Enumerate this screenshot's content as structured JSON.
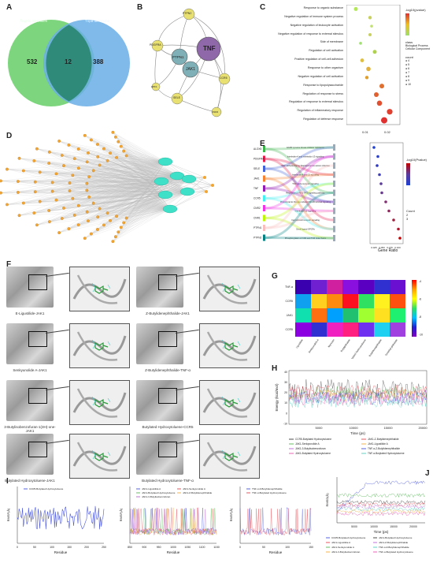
{
  "panels": {
    "A": "A",
    "B": "B",
    "C": "C",
    "D": "D",
    "E": "E",
    "F": "F",
    "G": "G",
    "H": "H",
    "I": "I",
    "J": "J"
  },
  "venn": {
    "left_label": "Ångelic Sennates",
    "right_label": "Tnpa aercesme",
    "left_only": "532",
    "overlap": "12",
    "right_only": "388",
    "left_color": "#6fd16f",
    "right_color": "#6aaee8"
  },
  "network_b": {
    "center": "TNF",
    "nodes": [
      "PTPN2",
      "PDGFRA",
      "PTPN1",
      "JAK1",
      "CCR5",
      "SELE",
      "HPF1",
      "CNR2",
      "ALOX5"
    ]
  },
  "panel_c": {
    "terms": [
      "Response to organic substance",
      "Negative regulation of immune system process",
      "Negative regulation of leukocyte activation",
      "Negative regulation of response to external stimulus",
      "Side of membrane",
      "Regulation of cell activation",
      "Positive regulation of cell-cell adhesion",
      "Response to other organism",
      "Negative regulation of cell activation",
      "Response to lipopolysaccharide",
      "Regulation of response to stress",
      "Regulation of response to external stimulus",
      "Regulation of inflammatory response",
      "Regulation of defense response"
    ],
    "xticks": [
      "0.01",
      "0.02"
    ],
    "legend_title": "-log10(pvalue)",
    "legend_ticks": [
      "8",
      "6",
      "4"
    ],
    "class_title": "class",
    "class_items": [
      "Biological Process",
      "Cellular Component"
    ],
    "count_title": "count",
    "count_items": [
      "4",
      "5",
      "6",
      "7",
      "8",
      "9",
      "10"
    ]
  },
  "panel_e": {
    "genes": [
      "ALOX5",
      "PDGFRA",
      "SELE",
      "JAK1",
      "TNF",
      "CCR5",
      "CNR2",
      "CNR1",
      "PTPN1",
      "PTPN2"
    ],
    "pathways": [
      "EGFR tyrosine kinase inhibitor resistance",
      "Interleukin-4 and interleukin-13 signaling",
      "TCR pathway during Staphylococcus aureus infection",
      "Interleukin-4 and 13 signaling",
      "TCR alpha receptor signaling",
      "Regulation of the STAT3 signaling pathway",
      "Photodynamic therapy-induced NF-kB survival signaling",
      "Interleukin-10 signaling",
      "Cannabinoid receptor signaling",
      "Small ligand GPCRs",
      "Phosphorylation of CD3 and TCR zeta chains"
    ],
    "xlabel": "Gene Ratio",
    "xticks": [
      "0.025",
      "0.050",
      "0.075",
      "0.100"
    ],
    "legend_title": "-log10(Pvalue)",
    "legend_ticks": [
      "2.0",
      "1.5"
    ],
    "count_title": "Count",
    "count_items": [
      "2",
      "3"
    ]
  },
  "panel_f": {
    "captions": [
      "E-Ligustilide-JAK1",
      "Z-Butylidenephthalide-JAK1",
      "Senkyunolide A-JAK1",
      "Z-Butylidenephthalide-TNF-α",
      "3-Butylisobenzofuran-1(3H)-one-JAK1",
      "Butylated Hydroxytoluene-CCR5",
      "Butylated Hydroxytoluene-JAK1",
      "Butylated Hydroxytoluene-TNF-α"
    ]
  },
  "panel_g": {
    "rows": [
      "TNF-α",
      "CCR5",
      "JAK1",
      "CCR5"
    ],
    "cols": [
      "Ligustilide",
      "Senkyunolide A",
      "Myricetin",
      "Butylphthalide",
      "Butylated Hydroxytoluene",
      "Butylidenephthalide",
      "Dimethyl phthalate"
    ],
    "colorbar_ticks": [
      "-4",
      "-6",
      "-8",
      "-10"
    ]
  },
  "panel_h": {
    "ylabel": "Energy (kcal/mol)",
    "xlabel": "Time (ps)",
    "xticks": [
      "5000",
      "10000",
      "15000",
      "20000"
    ],
    "yticks": [
      "40",
      "30",
      "20",
      "10",
      "0",
      "-10"
    ],
    "legend": [
      "CCR5-Butylated Hydroxytoluene",
      "JAK1-Z-Butylidenephthalide",
      "JAK1-Senkyunolide A",
      "JAK1-Ligustilide A",
      "JAK1-3-Butylisobenzofuran",
      "TNF-α-Z-Butylidenephthalide",
      "JAK1-Butylated Hydroxytoluene",
      "TNF-α-Butylated Hydroxytoluene"
    ]
  },
  "panel_i": {
    "ylabel": "RMSF(Å)",
    "xlabel": "Residue",
    "plot1_legend": [
      "CCR5-Butylated Hydroxytoluene"
    ],
    "plot1_xticks": [
      "0",
      "50",
      "100",
      "150",
      "200",
      "250"
    ],
    "plot2_legend": [
      "JAK1-Ligustilide A",
      "JAK1-Senkyunolide A",
      "JAK1-Butylated Hydroxytoluene",
      "JAK1-Z-Butylidenephthalide",
      "JAK1-3-Butylisobenzofuran"
    ],
    "plot2_xticks": [
      "850",
      "900",
      "950",
      "1000",
      "1050",
      "1100",
      "1150"
    ],
    "plot3_legend": [
      "TNF-α-Z-Butylidenephthalide",
      "TNF-α-Butylated Hydroxytoluene"
    ],
    "plot3_xticks": [
      "0",
      "50",
      "100",
      "150"
    ]
  },
  "panel_j": {
    "ylabel": "RMSD(Å)",
    "xlabel": "Time (ps)",
    "xticks": [
      "5000",
      "10000",
      "15000",
      "20000"
    ],
    "legend": [
      "CCR5-Butylated Hydroxytoluene",
      "JAK1-Butylated Hydroxytoluene",
      "JAK1-Ligustilide A",
      "JAK1-Z-Butylidenephthalide",
      "JAK1-Senkyunolide A",
      "TNF-α-Z-Butylidenephthalide",
      "JAK1-3-Butylisobenzofuran",
      "TNF-α-Butylated Hydroxytoluene"
    ]
  },
  "colors": {
    "black": "#222222",
    "red": "#e0303a",
    "blue": "#2d3bd6",
    "green": "#3fae3f",
    "orange": "#f0a020",
    "purple": "#b050d0",
    "magenta": "#e040a0",
    "teal": "#3cc8b8"
  }
}
